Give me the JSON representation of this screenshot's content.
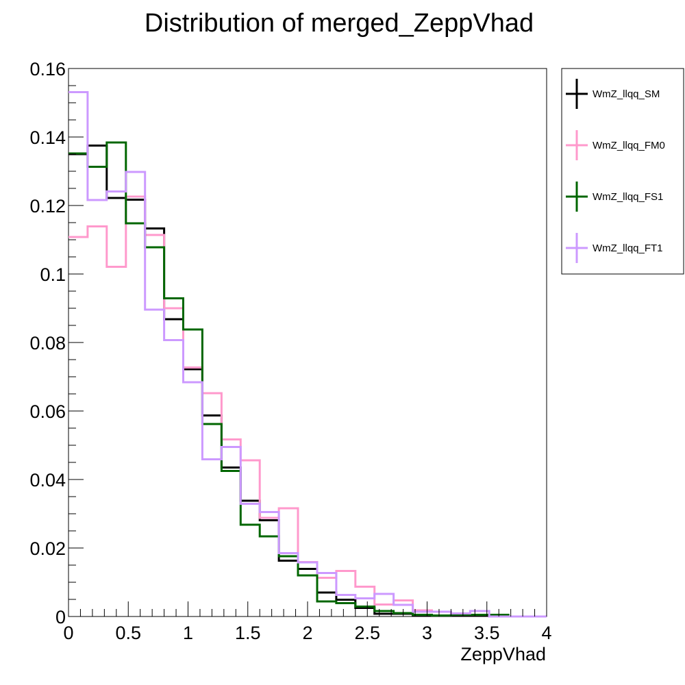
{
  "chart_data": {
    "type": "histogram",
    "title": "Distribution of merged_ZeppVhad",
    "xlabel": "ZeppVhad",
    "ylabel": "",
    "xlim": [
      0,
      4
    ],
    "ylim": [
      0,
      0.16
    ],
    "bin_edges": [
      0,
      0.16,
      0.32,
      0.48,
      0.64,
      0.8,
      0.96,
      1.12,
      1.28,
      1.44,
      1.6,
      1.76,
      1.92,
      2.08,
      2.24,
      2.4,
      2.56,
      2.72,
      2.88,
      3.04,
      3.2,
      3.36,
      3.52,
      3.68,
      3.84,
      4.0
    ],
    "x_ticks": [
      {
        "value": 0,
        "label": "0"
      },
      {
        "value": 0.5,
        "label": "0.5"
      },
      {
        "value": 1,
        "label": "1"
      },
      {
        "value": 1.5,
        "label": "1.5"
      },
      {
        "value": 2,
        "label": "2"
      },
      {
        "value": 2.5,
        "label": "2.5"
      },
      {
        "value": 3,
        "label": "3"
      },
      {
        "value": 3.5,
        "label": "3.5"
      },
      {
        "value": 4,
        "label": "4"
      }
    ],
    "y_ticks": [
      {
        "value": 0,
        "label": "0"
      },
      {
        "value": 0.02,
        "label": "0.02"
      },
      {
        "value": 0.04,
        "label": "0.04"
      },
      {
        "value": 0.06,
        "label": "0.06"
      },
      {
        "value": 0.08,
        "label": "0.08"
      },
      {
        "value": 0.1,
        "label": "0.1"
      },
      {
        "value": 0.12,
        "label": "0.12"
      },
      {
        "value": 0.14,
        "label": "0.14"
      },
      {
        "value": 0.16,
        "label": "0.16"
      }
    ],
    "series": [
      {
        "name": "WmZ_llqq_SM",
        "color": "#000000",
        "values": [
          0.135,
          0.1375,
          0.1222,
          0.1217,
          0.1133,
          0.0868,
          0.0722,
          0.0587,
          0.0435,
          0.0338,
          0.0281,
          0.0163,
          0.0139,
          0.007,
          0.0049,
          0.0025,
          0.0008,
          0.0008,
          0.0002,
          0.0002,
          0.0002,
          0.0002,
          0.0,
          0.0,
          0.0
        ]
      },
      {
        "name": "WmZ_llqq_FM0",
        "color": "#ff99cc",
        "values": [
          0.1108,
          0.1139,
          0.1021,
          0.1226,
          0.1114,
          0.09,
          0.0727,
          0.0652,
          0.0517,
          0.0456,
          0.0288,
          0.0316,
          0.0159,
          0.0113,
          0.0133,
          0.0087,
          0.0035,
          0.0047,
          0.0018,
          0.0014,
          0.0009,
          0.0005,
          0.0,
          0.0,
          0.0
        ]
      },
      {
        "name": "WmZ_llqq_FS1",
        "color": "#006600",
        "values": [
          0.1352,
          0.1313,
          0.1384,
          0.1148,
          0.1078,
          0.0929,
          0.0838,
          0.0562,
          0.0425,
          0.0268,
          0.0234,
          0.0176,
          0.012,
          0.0044,
          0.0039,
          0.0029,
          0.0016,
          0.001,
          0.0005,
          0.0003,
          0.0005,
          0.0005,
          0.0005,
          0.0,
          0.0
        ]
      },
      {
        "name": "WmZ_llqq_FT1",
        "color": "#cc99ff",
        "values": [
          0.1531,
          0.1216,
          0.1241,
          0.1298,
          0.0896,
          0.0807,
          0.0684,
          0.0459,
          0.0495,
          0.0329,
          0.0305,
          0.0185,
          0.0158,
          0.0127,
          0.0063,
          0.0053,
          0.0066,
          0.0034,
          0.0014,
          0.0014,
          0.0009,
          0.0016,
          0.0,
          0.0,
          0.0
        ]
      }
    ],
    "legend_position": "right"
  }
}
